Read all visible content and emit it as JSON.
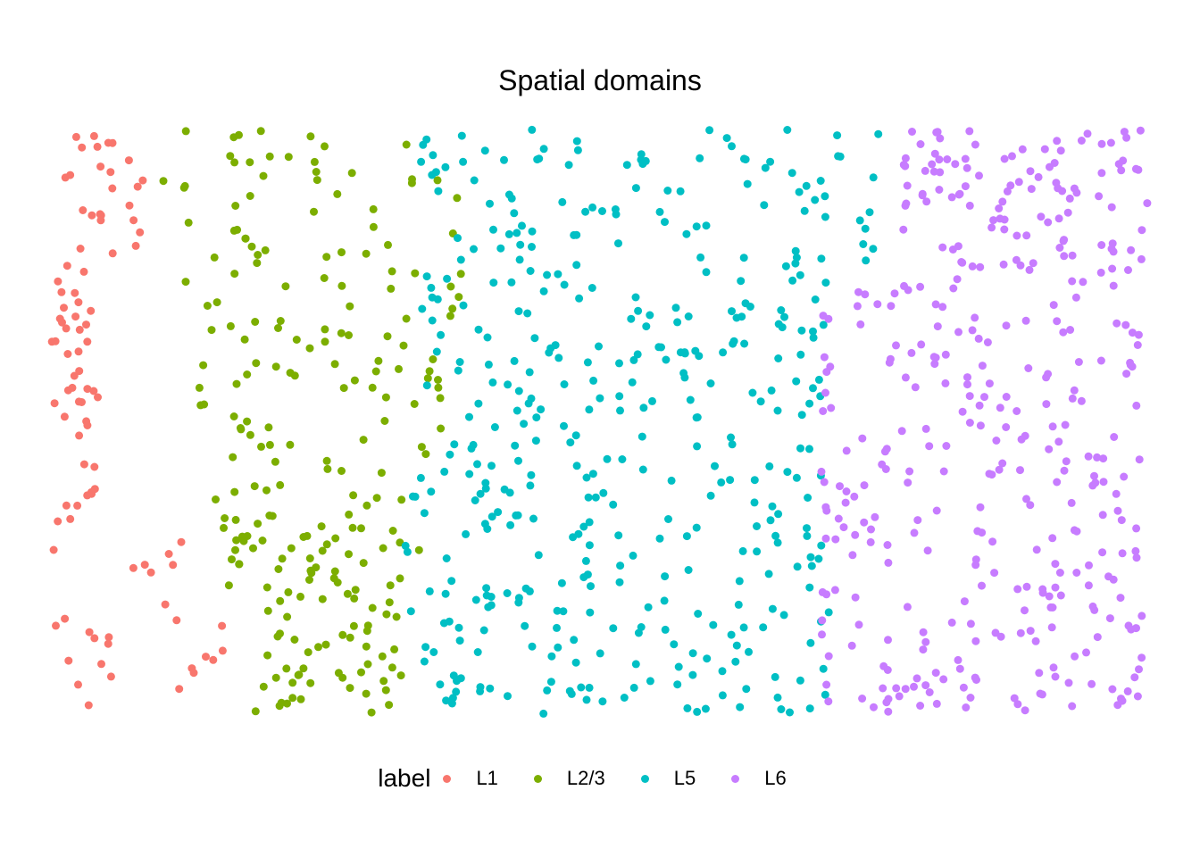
{
  "chart_data": {
    "type": "scatter",
    "title": "Spatial domains",
    "legend": {
      "title": "label",
      "position": "bottom"
    },
    "series": [
      {
        "name": "L1",
        "color": "#F8766D"
      },
      {
        "name": "L2/3",
        "color": "#7CAE00"
      },
      {
        "name": "L5",
        "color": "#00BFC4"
      },
      {
        "name": "L6",
        "color": "#C77CFF"
      }
    ],
    "axes": "hidden",
    "grid": false
  }
}
